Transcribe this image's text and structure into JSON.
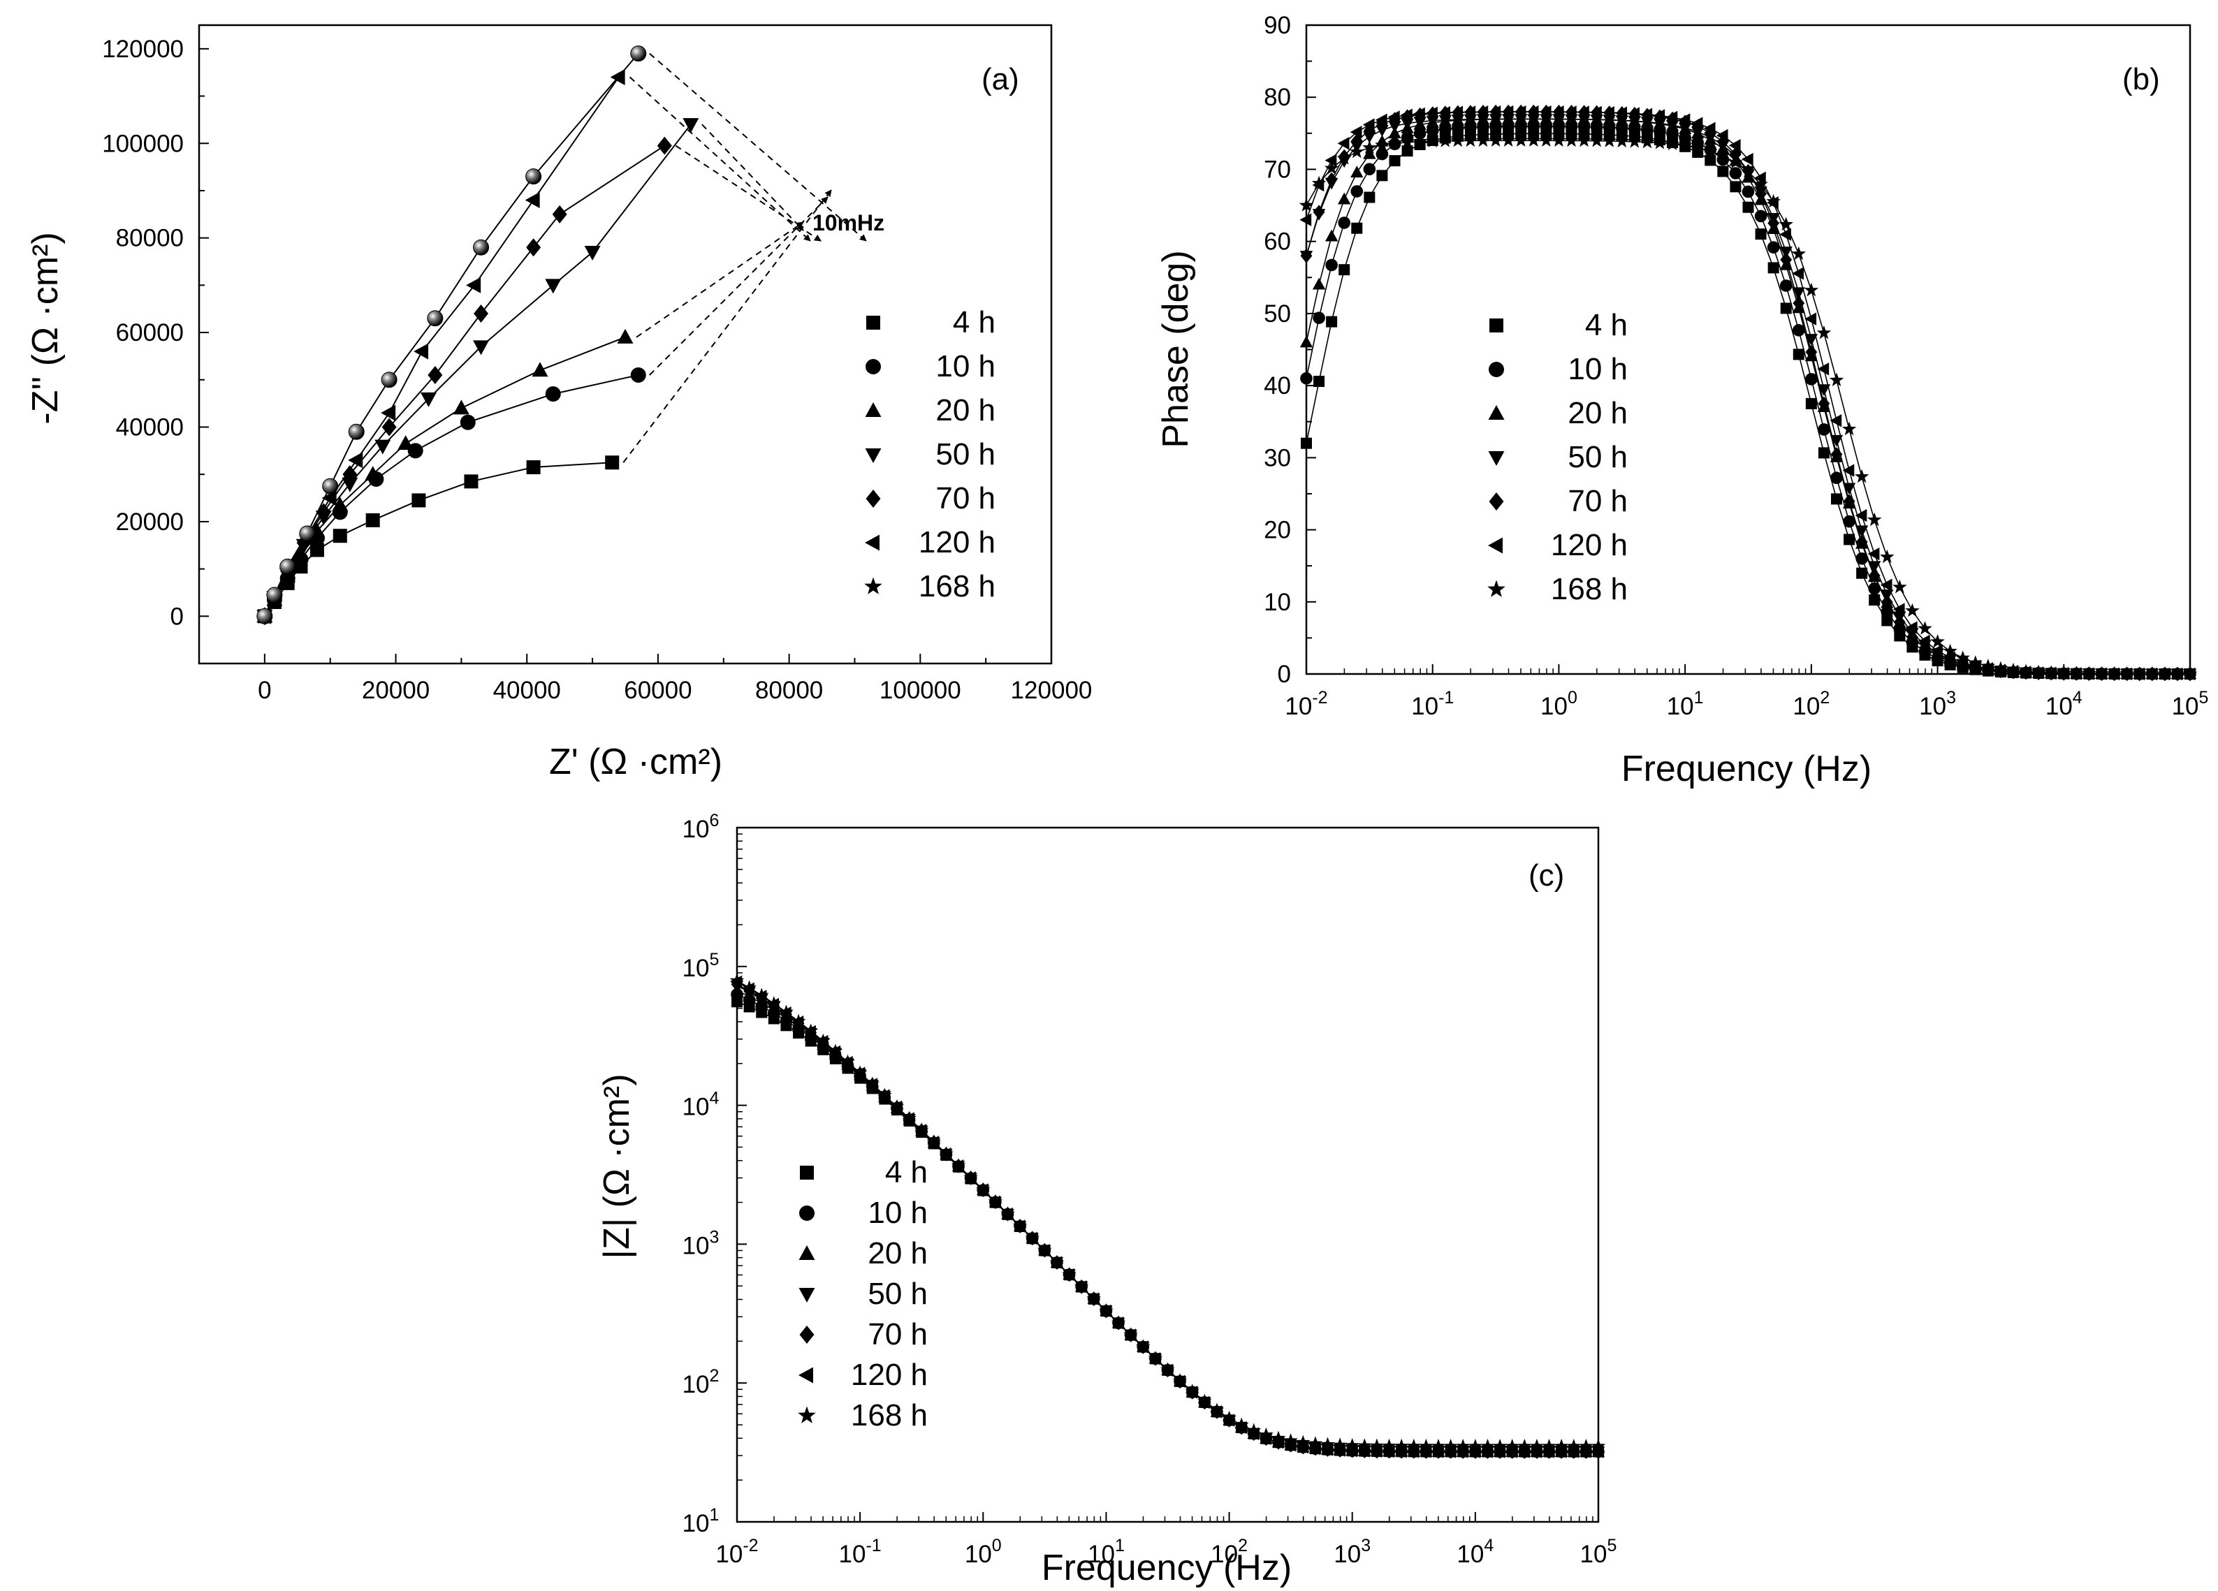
{
  "series_names": [
    "4 h",
    "10 h",
    "20 h",
    "50 h",
    "70 h",
    "120 h",
    "168 h"
  ],
  "chart_data": [
    {
      "id": "a",
      "type": "scatter",
      "panel_label": "(a)",
      "title": "",
      "xlabel": "Z' (Ω ·cm²)",
      "ylabel": "-Z'' (Ω ·cm²)",
      "xlim": [
        -10000,
        120000
      ],
      "ylim": [
        -10000,
        125000
      ],
      "xticks": [
        0,
        20000,
        40000,
        60000,
        80000,
        100000,
        120000
      ],
      "yticks": [
        0,
        20000,
        40000,
        60000,
        80000,
        100000,
        120000
      ],
      "xtick_labels": [
        "0",
        "20000",
        "40000",
        "60000",
        "80000",
        "100000",
        "120000"
      ],
      "ytick_labels": [
        "0",
        "20000",
        "40000",
        "60000",
        "80000",
        "100000",
        "120000"
      ],
      "annotation": "10mHz",
      "series": [
        {
          "name": "4 h",
          "marker": "square",
          "points": [
            [
              0,
              0
            ],
            [
              1500,
              3000
            ],
            [
              3500,
              7000
            ],
            [
              5500,
              10500
            ],
            [
              8000,
              14000
            ],
            [
              11500,
              17000
            ],
            [
              16500,
              20300
            ],
            [
              23500,
              24500
            ],
            [
              31500,
              28500
            ],
            [
              41000,
              31500
            ],
            [
              53000,
              32500
            ]
          ]
        },
        {
          "name": "10 h",
          "marker": "circle",
          "points": [
            [
              0,
              0
            ],
            [
              1500,
              3500
            ],
            [
              3500,
              8000
            ],
            [
              5500,
              12000
            ],
            [
              8000,
              16500
            ],
            [
              11500,
              22000
            ],
            [
              17000,
              29000
            ],
            [
              23000,
              35000
            ],
            [
              31000,
              41000
            ],
            [
              44000,
              47000
            ],
            [
              57000,
              51000
            ]
          ]
        },
        {
          "name": "20 h",
          "marker": "triangle-up",
          "points": [
            [
              0,
              0
            ],
            [
              1500,
              3500
            ],
            [
              3500,
              8500
            ],
            [
              5500,
              13000
            ],
            [
              8000,
              18000
            ],
            [
              11500,
              23500
            ],
            [
              16500,
              30000
            ],
            [
              21500,
              36500
            ],
            [
              30000,
              44000
            ],
            [
              42000,
              52000
            ],
            [
              55000,
              59000
            ]
          ]
        },
        {
          "name": "50 h",
          "marker": "triangle-down",
          "points": [
            [
              0,
              0
            ],
            [
              1500,
              4000
            ],
            [
              3500,
              9500
            ],
            [
              6000,
              15000
            ],
            [
              9000,
              21000
            ],
            [
              13000,
              28000
            ],
            [
              18000,
              36000
            ],
            [
              25000,
              46000
            ],
            [
              33000,
              57000
            ],
            [
              44000,
              70000
            ],
            [
              50000,
              77000
            ],
            [
              65000,
              104000
            ]
          ]
        },
        {
          "name": "70 h",
          "marker": "diamond",
          "points": [
            [
              0,
              0
            ],
            [
              1500,
              4000
            ],
            [
              3500,
              9500
            ],
            [
              6000,
              15500
            ],
            [
              9000,
              22000
            ],
            [
              13000,
              30000
            ],
            [
              19000,
              40000
            ],
            [
              26000,
              51000
            ],
            [
              33000,
              64000
            ],
            [
              41000,
              78000
            ],
            [
              45000,
              85000
            ],
            [
              61000,
              99500
            ]
          ]
        },
        {
          "name": "120 h",
          "marker": "triangle-left",
          "points": [
            [
              0,
              0
            ],
            [
              1500,
              4500
            ],
            [
              3500,
              10000
            ],
            [
              6500,
              17000
            ],
            [
              10000,
              25000
            ],
            [
              14000,
              33000
            ],
            [
              19000,
              43000
            ],
            [
              24000,
              56000
            ],
            [
              32000,
              70000
            ],
            [
              41000,
              88000
            ],
            [
              54000,
              114000
            ]
          ]
        },
        {
          "name": "168 h",
          "marker": "sphere",
          "points": [
            [
              0,
              0
            ],
            [
              1500,
              4500
            ],
            [
              3500,
              10500
            ],
            [
              6500,
              17500
            ],
            [
              10000,
              27500
            ],
            [
              14000,
              39000
            ],
            [
              19000,
              50000
            ],
            [
              26000,
              63000
            ],
            [
              33000,
              78000
            ],
            [
              41000,
              93000
            ],
            [
              57000,
              119000
            ]
          ]
        }
      ]
    },
    {
      "id": "b",
      "type": "scatter",
      "panel_label": "(b)",
      "title": "",
      "xlabel": "Frequency (Hz)",
      "ylabel": "Phase (deg)",
      "xscale": "log",
      "xlim": [
        0.01,
        100000
      ],
      "ylim": [
        0,
        90
      ],
      "yticks": [
        0,
        10,
        20,
        30,
        40,
        50,
        60,
        70,
        80,
        90
      ],
      "ytick_labels": [
        "0",
        "10",
        "20",
        "30",
        "40",
        "50",
        "60",
        "70",
        "80",
        "90"
      ],
      "xtick_labels": [
        "10^-2",
        "10^-1",
        "10^0",
        "10^1",
        "10^2",
        "10^3",
        "10^4",
        "10^5"
      ],
      "series_theta_max": [
        75,
        76,
        77,
        77,
        78,
        78,
        74
      ],
      "series_theta_at_10mHz": [
        32,
        41,
        46,
        58,
        58,
        63,
        65
      ],
      "series_fc_Hz": [
        100,
        110,
        120,
        130,
        120,
        140,
        180
      ],
      "sampling": "10 points/decade, 0.01 Hz to 100 kHz"
    },
    {
      "id": "c",
      "type": "scatter",
      "panel_label": "(c)",
      "title": "",
      "xlabel": "Frequency (Hz)",
      "ylabel": "|Z| (Ω ·cm²)",
      "xscale": "log",
      "yscale": "log",
      "xlim": [
        0.01,
        100000
      ],
      "ylim": [
        10,
        1000000
      ],
      "xtick_labels": [
        "10^-2",
        "10^-1",
        "10^0",
        "10^1",
        "10^2",
        "10^3",
        "10^4",
        "10^5"
      ],
      "ytick_labels": [
        "10^1",
        "10^2",
        "10^3",
        "10^4",
        "10^5",
        "10^6"
      ],
      "series_Z_at_10mHz": [
        65000,
        80000,
        90000,
        105000,
        110000,
        120000,
        125000
      ],
      "series_Rs": [
        32,
        32,
        32,
        32,
        32,
        32,
        35
      ],
      "slope_reference": {
        "f": 1.0,
        "Z": 2500,
        "slope": -0.88
      },
      "sampling": "10 points/decade, 0.01 Hz to 100 kHz"
    }
  ]
}
